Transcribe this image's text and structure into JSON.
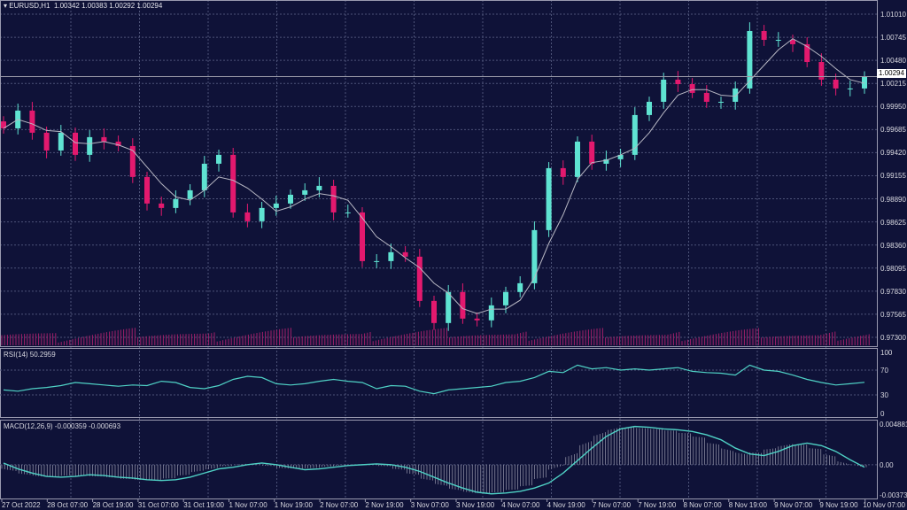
{
  "chart_data": [
    {
      "type": "candlestick",
      "title": "EURUSD,H1",
      "ohlc_header": [
        "1.00342",
        "1.00383",
        "1.00292",
        "1.00294"
      ],
      "current_price": "1.00294",
      "ylim": [
        0.9717,
        1.0117
      ],
      "y_ticks": [
        "1.01010",
        "1.00745",
        "1.00480",
        "1.00215",
        "0.99950",
        "0.99685",
        "0.99420",
        "0.99155",
        "0.98890",
        "0.98625",
        "0.98360",
        "0.98095",
        "0.97830",
        "0.97565",
        "0.97300"
      ],
      "x_ticks": [
        "27 Oct 2022",
        "28 Oct 07:00",
        "28 Oct 19:00",
        "31 Oct 07:00",
        "31 Oct 19:00",
        "1 Nov 07:00",
        "1 Nov 19:00",
        "2 Nov 07:00",
        "2 Nov 19:00",
        "3 Nov 07:00",
        "3 Nov 19:00",
        "4 Nov 07:00",
        "4 Nov 19:00",
        "7 Nov 07:00",
        "7 Nov 19:00",
        "8 Nov 07:00",
        "8 Nov 19:00",
        "9 Nov 07:00",
        "9 Nov 19:00",
        "10 Nov 07:00"
      ],
      "closes": [
        0.99699,
        0.99903,
        0.99649,
        0.99445,
        0.99649,
        0.99395,
        0.99598,
        0.99547,
        0.99496,
        0.99141,
        0.98836,
        0.98785,
        0.98887,
        0.98988,
        0.99293,
        0.99395,
        0.98734,
        0.98633,
        0.98785,
        0.98836,
        0.98937,
        0.98988,
        0.99039,
        0.98734,
        0.98734,
        0.98175,
        0.98175,
        0.98277,
        0.98226,
        0.97718,
        0.97464,
        0.9782,
        0.97515,
        0.97495,
        0.97667,
        0.9782,
        0.97921,
        0.98531,
        0.99242,
        0.99141,
        0.99547,
        0.99293,
        0.99344,
        0.99395,
        0.99852,
        1.00004,
        1.00258,
        1.00207,
        1.00106,
        1.00004,
        1.00004,
        1.00157,
        1.00817,
        1.00715,
        1.00715,
        1.00665,
        1.00461,
        1.00258,
        1.00157,
        1.00157,
        1.00294
      ],
      "colors": {
        "bull": "#5fe3d2",
        "bear": "#e3196e",
        "ma": "#b8b8c4",
        "grid": "#4d5378",
        "bg": "#0f1238"
      }
    },
    {
      "type": "line",
      "title": "RSI(14) 50.2959",
      "ylim": [
        0,
        100
      ],
      "y_ticks": [
        "100",
        "70",
        "30",
        "0"
      ],
      "values": [
        38,
        36,
        40,
        42,
        45,
        50,
        48,
        46,
        44,
        46,
        45,
        52,
        50,
        42,
        40,
        45,
        55,
        60,
        58,
        48,
        46,
        48,
        52,
        55,
        52,
        50,
        40,
        45,
        44,
        36,
        32,
        38,
        40,
        42,
        44,
        50,
        52,
        58,
        68,
        66,
        78,
        72,
        74,
        70,
        72,
        70,
        72,
        74,
        68,
        66,
        65,
        62,
        78,
        70,
        68,
        62,
        55,
        50,
        46,
        48,
        50.3
      ],
      "color": "#4fd1c5"
    },
    {
      "type": "bar+line",
      "title": "MACD(12,26,9) -0.000359 -0.000693",
      "ylim": [
        -0.003739,
        0.004881
      ],
      "y_ticks": [
        "0.004881",
        "0.00",
        "-0.003739"
      ],
      "signal": [
        0.0002,
        -0.0005,
        -0.001,
        -0.0014,
        -0.0015,
        -0.0014,
        -0.0012,
        -0.0013,
        -0.0015,
        -0.0016,
        -0.0018,
        -0.0019,
        -0.0018,
        -0.0015,
        -0.001,
        -0.0005,
        -0.0003,
        0,
        0.0002,
        0,
        -0.0003,
        -0.0006,
        -0.0005,
        -0.0003,
        -0.0001,
        0,
        0.0001,
        0,
        -0.0003,
        -0.0008,
        -0.0015,
        -0.0022,
        -0.0028,
        -0.0033,
        -0.0035,
        -0.0034,
        -0.0032,
        -0.0028,
        -0.0022,
        -0.001,
        0.0005,
        0.002,
        0.0034,
        0.0043,
        0.0046,
        0.0045,
        0.0043,
        0.0042,
        0.004,
        0.0036,
        0.003,
        0.002,
        0.0013,
        0.0011,
        0.0016,
        0.0023,
        0.0026,
        0.0023,
        0.0016,
        0.0006,
        -0.0003
      ],
      "color": "#4fd1c5"
    }
  ]
}
